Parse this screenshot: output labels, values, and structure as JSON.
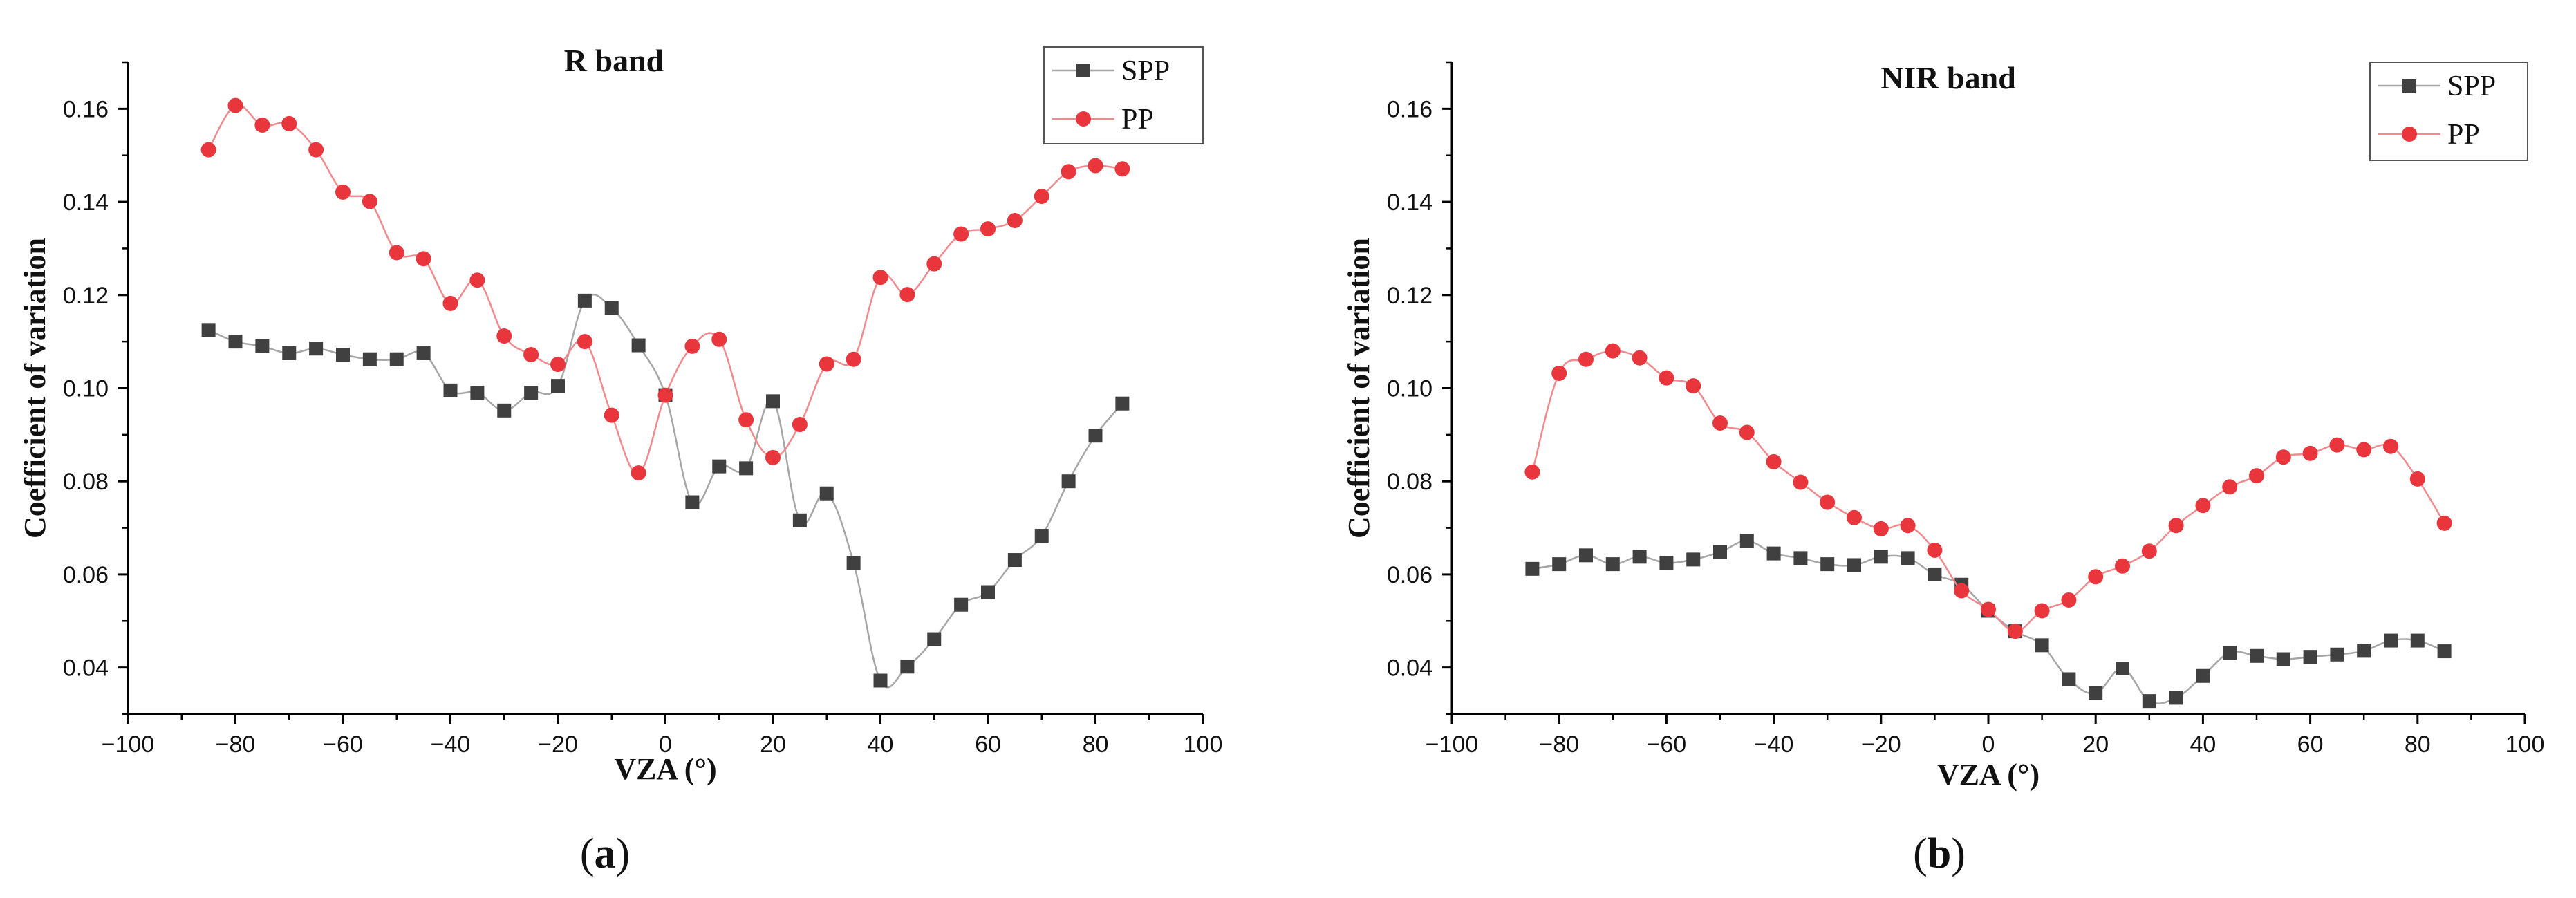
{
  "chart_data": [
    {
      "type": "line",
      "panel_label": "a",
      "title": "R band",
      "xlabel": "VZA (°)",
      "ylabel": "Coefficient of variation",
      "xlim": [
        -100,
        100
      ],
      "ylim": [
        0.03,
        0.17
      ],
      "xticks": [
        -100,
        -80,
        -60,
        -40,
        -20,
        0,
        20,
        40,
        60,
        80,
        100
      ],
      "yticks": [
        0.04,
        0.06,
        0.08,
        0.1,
        0.12,
        0.14,
        0.16
      ],
      "legend_position": "top-right",
      "x": [
        -85,
        -80,
        -75,
        -70,
        -65,
        -60,
        -55,
        -50,
        -45,
        -40,
        -35,
        -30,
        -25,
        -20,
        -15,
        -10,
        -5,
        0,
        5,
        10,
        15,
        20,
        25,
        30,
        35,
        40,
        45,
        50,
        55,
        60,
        65,
        70,
        75,
        80,
        85
      ],
      "series": [
        {
          "name": "SPP",
          "marker": "square",
          "color": "#404040",
          "line_color": "#a6a6a6",
          "values": [
            0.1125,
            0.11,
            0.109,
            0.1075,
            0.1085,
            0.1072,
            0.1062,
            0.1062,
            0.1075,
            0.0995,
            0.099,
            0.0952,
            0.099,
            0.1005,
            0.1188,
            0.1172,
            0.1092,
            0.0985,
            0.0755,
            0.0832,
            0.0828,
            0.0972,
            0.0716,
            0.0774,
            0.0625,
            0.0372,
            0.0402,
            0.0461,
            0.0535,
            0.0562,
            0.0631,
            0.0683,
            0.08,
            0.0898,
            0.0967
          ]
        },
        {
          "name": "PP",
          "marker": "circle",
          "color": "#e8363c",
          "line_color": "#f08a8e",
          "values": [
            0.1512,
            0.1607,
            0.1565,
            0.1568,
            0.1512,
            0.1421,
            0.1401,
            0.1291,
            0.1278,
            0.1182,
            0.1232,
            0.1112,
            0.1072,
            0.1051,
            0.11,
            0.0942,
            0.0818,
            0.0985,
            0.109,
            0.1105,
            0.0932,
            0.0851,
            0.0922,
            0.1052,
            0.1062,
            0.1238,
            0.1201,
            0.1267,
            0.1331,
            0.1342,
            0.136,
            0.1412,
            0.1465,
            0.1478,
            0.1471
          ]
        }
      ]
    },
    {
      "type": "line",
      "panel_label": "b",
      "title": "NIR band",
      "xlabel": "VZA (°)",
      "ylabel": "Coefficient of variation",
      "xlim": [
        -100,
        100
      ],
      "ylim": [
        0.03,
        0.17
      ],
      "xticks": [
        -100,
        -80,
        -60,
        -40,
        -20,
        0,
        20,
        40,
        60,
        80,
        100
      ],
      "yticks": [
        0.04,
        0.06,
        0.08,
        0.1,
        0.12,
        0.14,
        0.16
      ],
      "legend_position": "top-right",
      "x": [
        -85,
        -80,
        -75,
        -70,
        -65,
        -60,
        -55,
        -50,
        -45,
        -40,
        -35,
        -30,
        -25,
        -20,
        -15,
        -10,
        -5,
        0,
        5,
        10,
        15,
        20,
        25,
        30,
        35,
        40,
        45,
        50,
        55,
        60,
        65,
        70,
        75,
        80,
        85
      ],
      "series": [
        {
          "name": "SPP",
          "marker": "square",
          "color": "#404040",
          "line_color": "#a6a6a6",
          "values": [
            0.0612,
            0.0622,
            0.0641,
            0.0622,
            0.0638,
            0.0625,
            0.0632,
            0.0648,
            0.0672,
            0.0645,
            0.0635,
            0.0622,
            0.062,
            0.0638,
            0.0635,
            0.06,
            0.0578,
            0.0522,
            0.0478,
            0.0448,
            0.0375,
            0.0345,
            0.0398,
            0.0328,
            0.0335,
            0.0382,
            0.0432,
            0.0425,
            0.0418,
            0.0423,
            0.0428,
            0.0436,
            0.0458,
            0.0458,
            0.0435
          ]
        },
        {
          "name": "PP",
          "marker": "circle",
          "color": "#e8363c",
          "line_color": "#f08a8e",
          "values": [
            0.082,
            0.1032,
            0.1062,
            0.108,
            0.1065,
            0.1022,
            0.1005,
            0.0925,
            0.0905,
            0.0842,
            0.0798,
            0.0755,
            0.0722,
            0.0698,
            0.0705,
            0.0652,
            0.0565,
            0.0525,
            0.0478,
            0.0522,
            0.0545,
            0.0595,
            0.0618,
            0.065,
            0.0705,
            0.0748,
            0.0788,
            0.0812,
            0.0852,
            0.086,
            0.0878,
            0.0868,
            0.0875,
            0.0805,
            0.071
          ]
        }
      ]
    }
  ]
}
